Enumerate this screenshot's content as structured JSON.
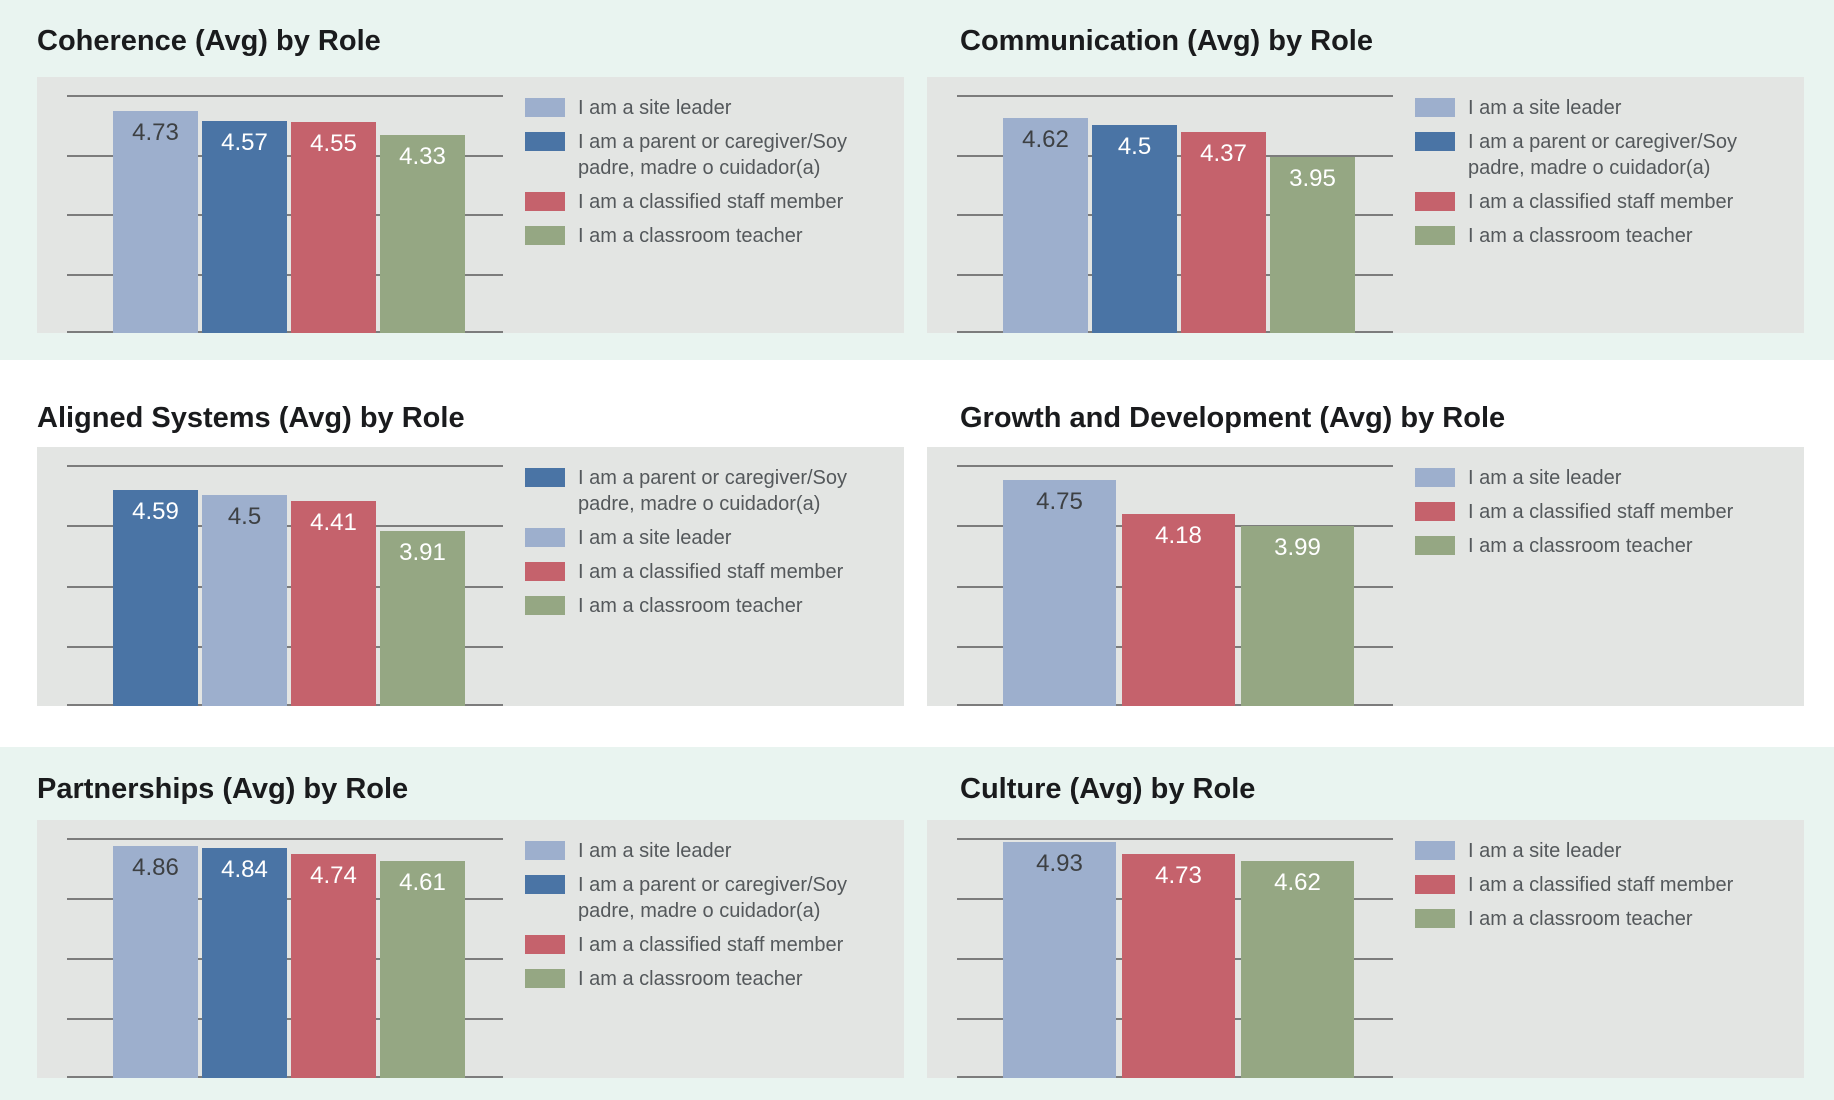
{
  "page": {
    "background_color": "#ffffff",
    "band_color": "#e9f4f0",
    "panel_color": "#e3e5e3",
    "gridline_color": "#7c7c7c"
  },
  "roles": {
    "site_leader": {
      "label": "I am a site leader",
      "lines": [
        "I am a site leader"
      ],
      "color": "#9dafcd",
      "value_label_color": "#3d4043"
    },
    "parent": {
      "label": "I am a parent or caregiver/Soy padre, madre o cuidador(a)",
      "lines": [
        "I am a parent or caregiver/Soy",
        "padre, madre o cuidador(a)"
      ],
      "color": "#4a74a5",
      "value_label_color": "#ffffff"
    },
    "classified": {
      "label": "I am a classified staff member",
      "lines": [
        "I am a classified staff member"
      ],
      "color": "#c5626c",
      "value_label_color": "#ffffff"
    },
    "teacher": {
      "label": "I am a classroom teacher",
      "lines": [
        "I am a classroom teacher"
      ],
      "color": "#95a783",
      "value_label_color": "#ffffff"
    }
  },
  "chart_data": [
    {
      "id": "coherence",
      "type": "bar",
      "title": "Coherence (Avg) by Role",
      "categories": [
        "I am a site leader",
        "I am a parent or caregiver/Soy padre, madre o cuidador(a)",
        "I am a classified staff member",
        "I am a classroom teacher"
      ],
      "bar_roles": [
        "site_leader",
        "parent",
        "classified",
        "teacher"
      ],
      "values": [
        4.73,
        4.57,
        4.55,
        4.33
      ],
      "value_labels": [
        "4.73",
        "4.57",
        "4.55",
        "4.33"
      ],
      "legend_order": [
        "site_leader",
        "parent",
        "classified",
        "teacher"
      ],
      "legend_position": "right",
      "ylim_visible": [
        1,
        5
      ],
      "gridline_values": [
        5,
        4,
        3,
        2,
        1
      ],
      "grid": true
    },
    {
      "id": "communication",
      "type": "bar",
      "title": "Communication (Avg) by Role",
      "categories": [
        "I am a site leader",
        "I am a parent or caregiver/Soy padre, madre o cuidador(a)",
        "I am a classified staff member",
        "I am a classroom teacher"
      ],
      "bar_roles": [
        "site_leader",
        "parent",
        "classified",
        "teacher"
      ],
      "values": [
        4.62,
        4.5,
        4.37,
        3.95
      ],
      "value_labels": [
        "4.62",
        "4.5",
        "4.37",
        "3.95"
      ],
      "legend_order": [
        "site_leader",
        "parent",
        "classified",
        "teacher"
      ],
      "legend_position": "right",
      "ylim_visible": [
        1,
        5
      ],
      "gridline_values": [
        5,
        4,
        3,
        2,
        1
      ],
      "grid": true
    },
    {
      "id": "aligned-systems",
      "type": "bar",
      "title": "Aligned Systems (Avg) by Role",
      "categories": [
        "I am a parent or caregiver/Soy padre, madre o cuidador(a)",
        "I am a site leader",
        "I am a classified staff member",
        "I am a classroom teacher"
      ],
      "bar_roles": [
        "parent",
        "site_leader",
        "classified",
        "teacher"
      ],
      "values": [
        4.59,
        4.5,
        4.41,
        3.91
      ],
      "value_labels": [
        "4.59",
        "4.5",
        "4.41",
        "3.91"
      ],
      "legend_order": [
        "parent",
        "site_leader",
        "classified",
        "teacher"
      ],
      "legend_position": "right",
      "ylim_visible": [
        1,
        5
      ],
      "gridline_values": [
        5,
        4,
        3,
        2,
        1
      ],
      "grid": true
    },
    {
      "id": "growth-and-development",
      "type": "bar",
      "title": "Growth and Development (Avg) by Role",
      "categories": [
        "I am a site leader",
        "I am a classified staff member",
        "I am a classroom teacher"
      ],
      "bar_roles": [
        "site_leader",
        "classified",
        "teacher"
      ],
      "values": [
        4.75,
        4.18,
        3.99
      ],
      "value_labels": [
        "4.75",
        "4.18",
        "3.99"
      ],
      "legend_order": [
        "site_leader",
        "classified",
        "teacher"
      ],
      "legend_position": "right",
      "ylim_visible": [
        1,
        5
      ],
      "gridline_values": [
        5,
        4,
        3,
        2,
        1
      ],
      "grid": true
    },
    {
      "id": "partnerships",
      "type": "bar",
      "title": "Partnerships (Avg) by Role",
      "categories": [
        "I am a site leader",
        "I am a parent or caregiver/Soy padre, madre o cuidador(a)",
        "I am a classified staff member",
        "I am a classroom teacher"
      ],
      "bar_roles": [
        "site_leader",
        "parent",
        "classified",
        "teacher"
      ],
      "values": [
        4.86,
        4.84,
        4.74,
        4.61
      ],
      "value_labels": [
        "4.86",
        "4.84",
        "4.74",
        "4.61"
      ],
      "legend_order": [
        "site_leader",
        "parent",
        "classified",
        "teacher"
      ],
      "legend_position": "right",
      "ylim_visible": [
        1,
        5
      ],
      "gridline_values": [
        5,
        4,
        3,
        2,
        1
      ],
      "grid": true
    },
    {
      "id": "culture",
      "type": "bar",
      "title": "Culture (Avg) by Role",
      "categories": [
        "I am a site leader",
        "I am a classified staff member",
        "I am a classroom teacher"
      ],
      "bar_roles": [
        "site_leader",
        "classified",
        "teacher"
      ],
      "values": [
        4.93,
        4.73,
        4.62
      ],
      "value_labels": [
        "4.93",
        "4.73",
        "4.62"
      ],
      "legend_order": [
        "site_leader",
        "classified",
        "teacher"
      ],
      "legend_position": "right",
      "ylim_visible": [
        1,
        5
      ],
      "gridline_values": [
        5,
        4,
        3,
        2,
        1
      ],
      "grid": true
    }
  ]
}
